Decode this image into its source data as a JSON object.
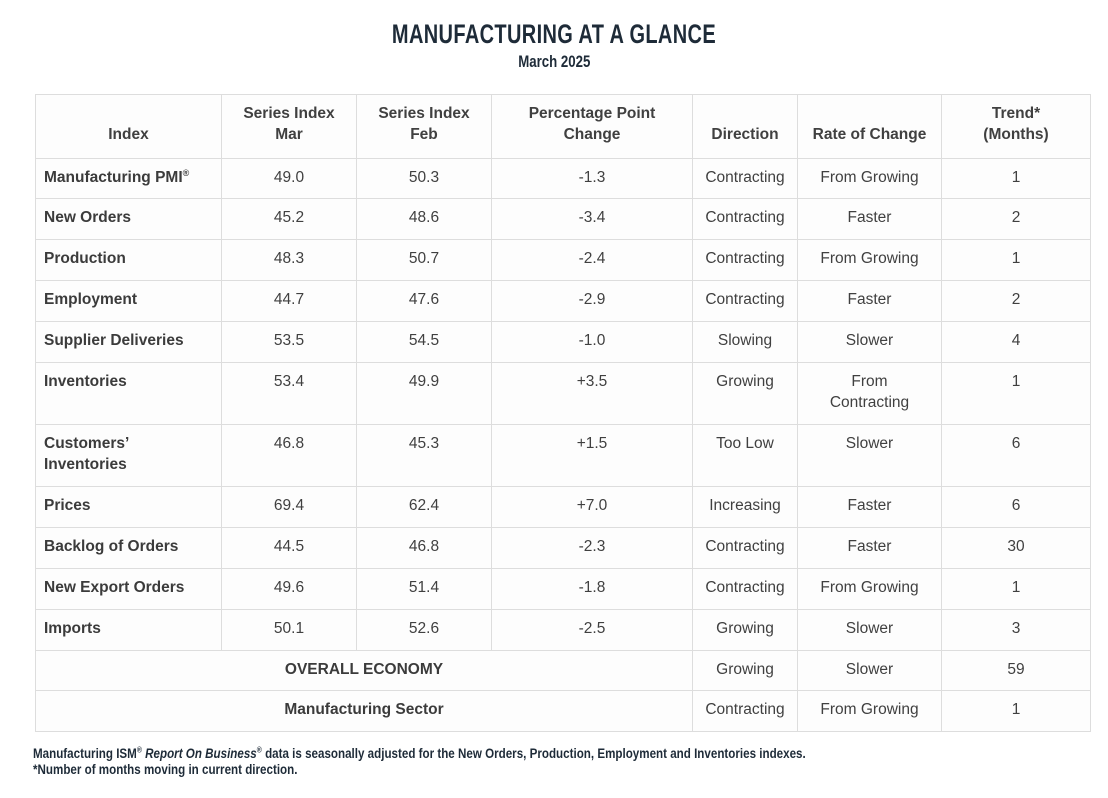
{
  "title": "MANUFACTURING AT A GLANCE",
  "subtitle": "March 2025",
  "table": {
    "columns": [
      "Index",
      "Series Index\nMar",
      "Series Index\nFeb",
      "Percentage Point\nChange",
      "Direction",
      "Rate of Change",
      "Trend*\n(Months)"
    ],
    "column_keys": [
      "index",
      "series-index-mar",
      "series-index-feb",
      "percentage-point-change",
      "direction",
      "rate-of-change",
      "trend-months"
    ],
    "rows": [
      {
        "label": "Manufacturing PMI",
        "label_sup": "®",
        "mar": "49.0",
        "feb": "50.3",
        "change": "-1.3",
        "direction": "Contracting",
        "rate": "From Growing",
        "trend": "1"
      },
      {
        "label": "New Orders",
        "mar": "45.2",
        "feb": "48.6",
        "change": "-3.4",
        "direction": "Contracting",
        "rate": "Faster",
        "trend": "2"
      },
      {
        "label": "Production",
        "mar": "48.3",
        "feb": "50.7",
        "change": "-2.4",
        "direction": "Contracting",
        "rate": "From Growing",
        "trend": "1"
      },
      {
        "label": "Employment",
        "mar": "44.7",
        "feb": "47.6",
        "change": "-2.9",
        "direction": "Contracting",
        "rate": "Faster",
        "trend": "2"
      },
      {
        "label": "Supplier Deliveries",
        "mar": "53.5",
        "feb": "54.5",
        "change": "-1.0",
        "direction": "Slowing",
        "rate": "Slower",
        "trend": "4"
      },
      {
        "label": "Inventories",
        "mar": "53.4",
        "feb": "49.9",
        "change": "+3.5",
        "direction": "Growing",
        "rate": "From\nContracting",
        "trend": "1"
      },
      {
        "label": "Customers’\nInventories",
        "mar": "46.8",
        "feb": "45.3",
        "change": "+1.5",
        "direction": "Too Low",
        "rate": "Slower",
        "trend": "6"
      },
      {
        "label": "Prices",
        "mar": "69.4",
        "feb": "62.4",
        "change": "+7.0",
        "direction": "Increasing",
        "rate": "Faster",
        "trend": "6"
      },
      {
        "label": "Backlog of Orders",
        "mar": "44.5",
        "feb": "46.8",
        "change": "-2.3",
        "direction": "Contracting",
        "rate": "Faster",
        "trend": "30"
      },
      {
        "label": "New Export Orders",
        "mar": "49.6",
        "feb": "51.4",
        "change": "-1.8",
        "direction": "Contracting",
        "rate": "From Growing",
        "trend": "1"
      },
      {
        "label": "Imports",
        "mar": "50.1",
        "feb": "52.6",
        "change": "-2.5",
        "direction": "Growing",
        "rate": "Slower",
        "trend": "3"
      }
    ],
    "summary_rows": [
      {
        "label": "OVERALL ECONOMY",
        "direction": "Growing",
        "rate": "Slower",
        "trend": "59"
      },
      {
        "label": "Manufacturing Sector",
        "direction": "Contracting",
        "rate": "From Growing",
        "trend": "1"
      }
    ]
  },
  "footnote": {
    "line1_prefix": "Manufacturing ISM",
    "line1_sup1": "®",
    "line1_italic": " Report On Business",
    "line1_sup2": "®",
    "line1_suffix": " data is seasonally adjusted for the New Orders, Production, Employment and Inventories indexes.",
    "line2": "*Number of months moving in current direction."
  },
  "colors": {
    "heading_text": "#1e2b38",
    "body_text": "#404040",
    "table_border": "#dddddd",
    "background": "#ffffff"
  }
}
